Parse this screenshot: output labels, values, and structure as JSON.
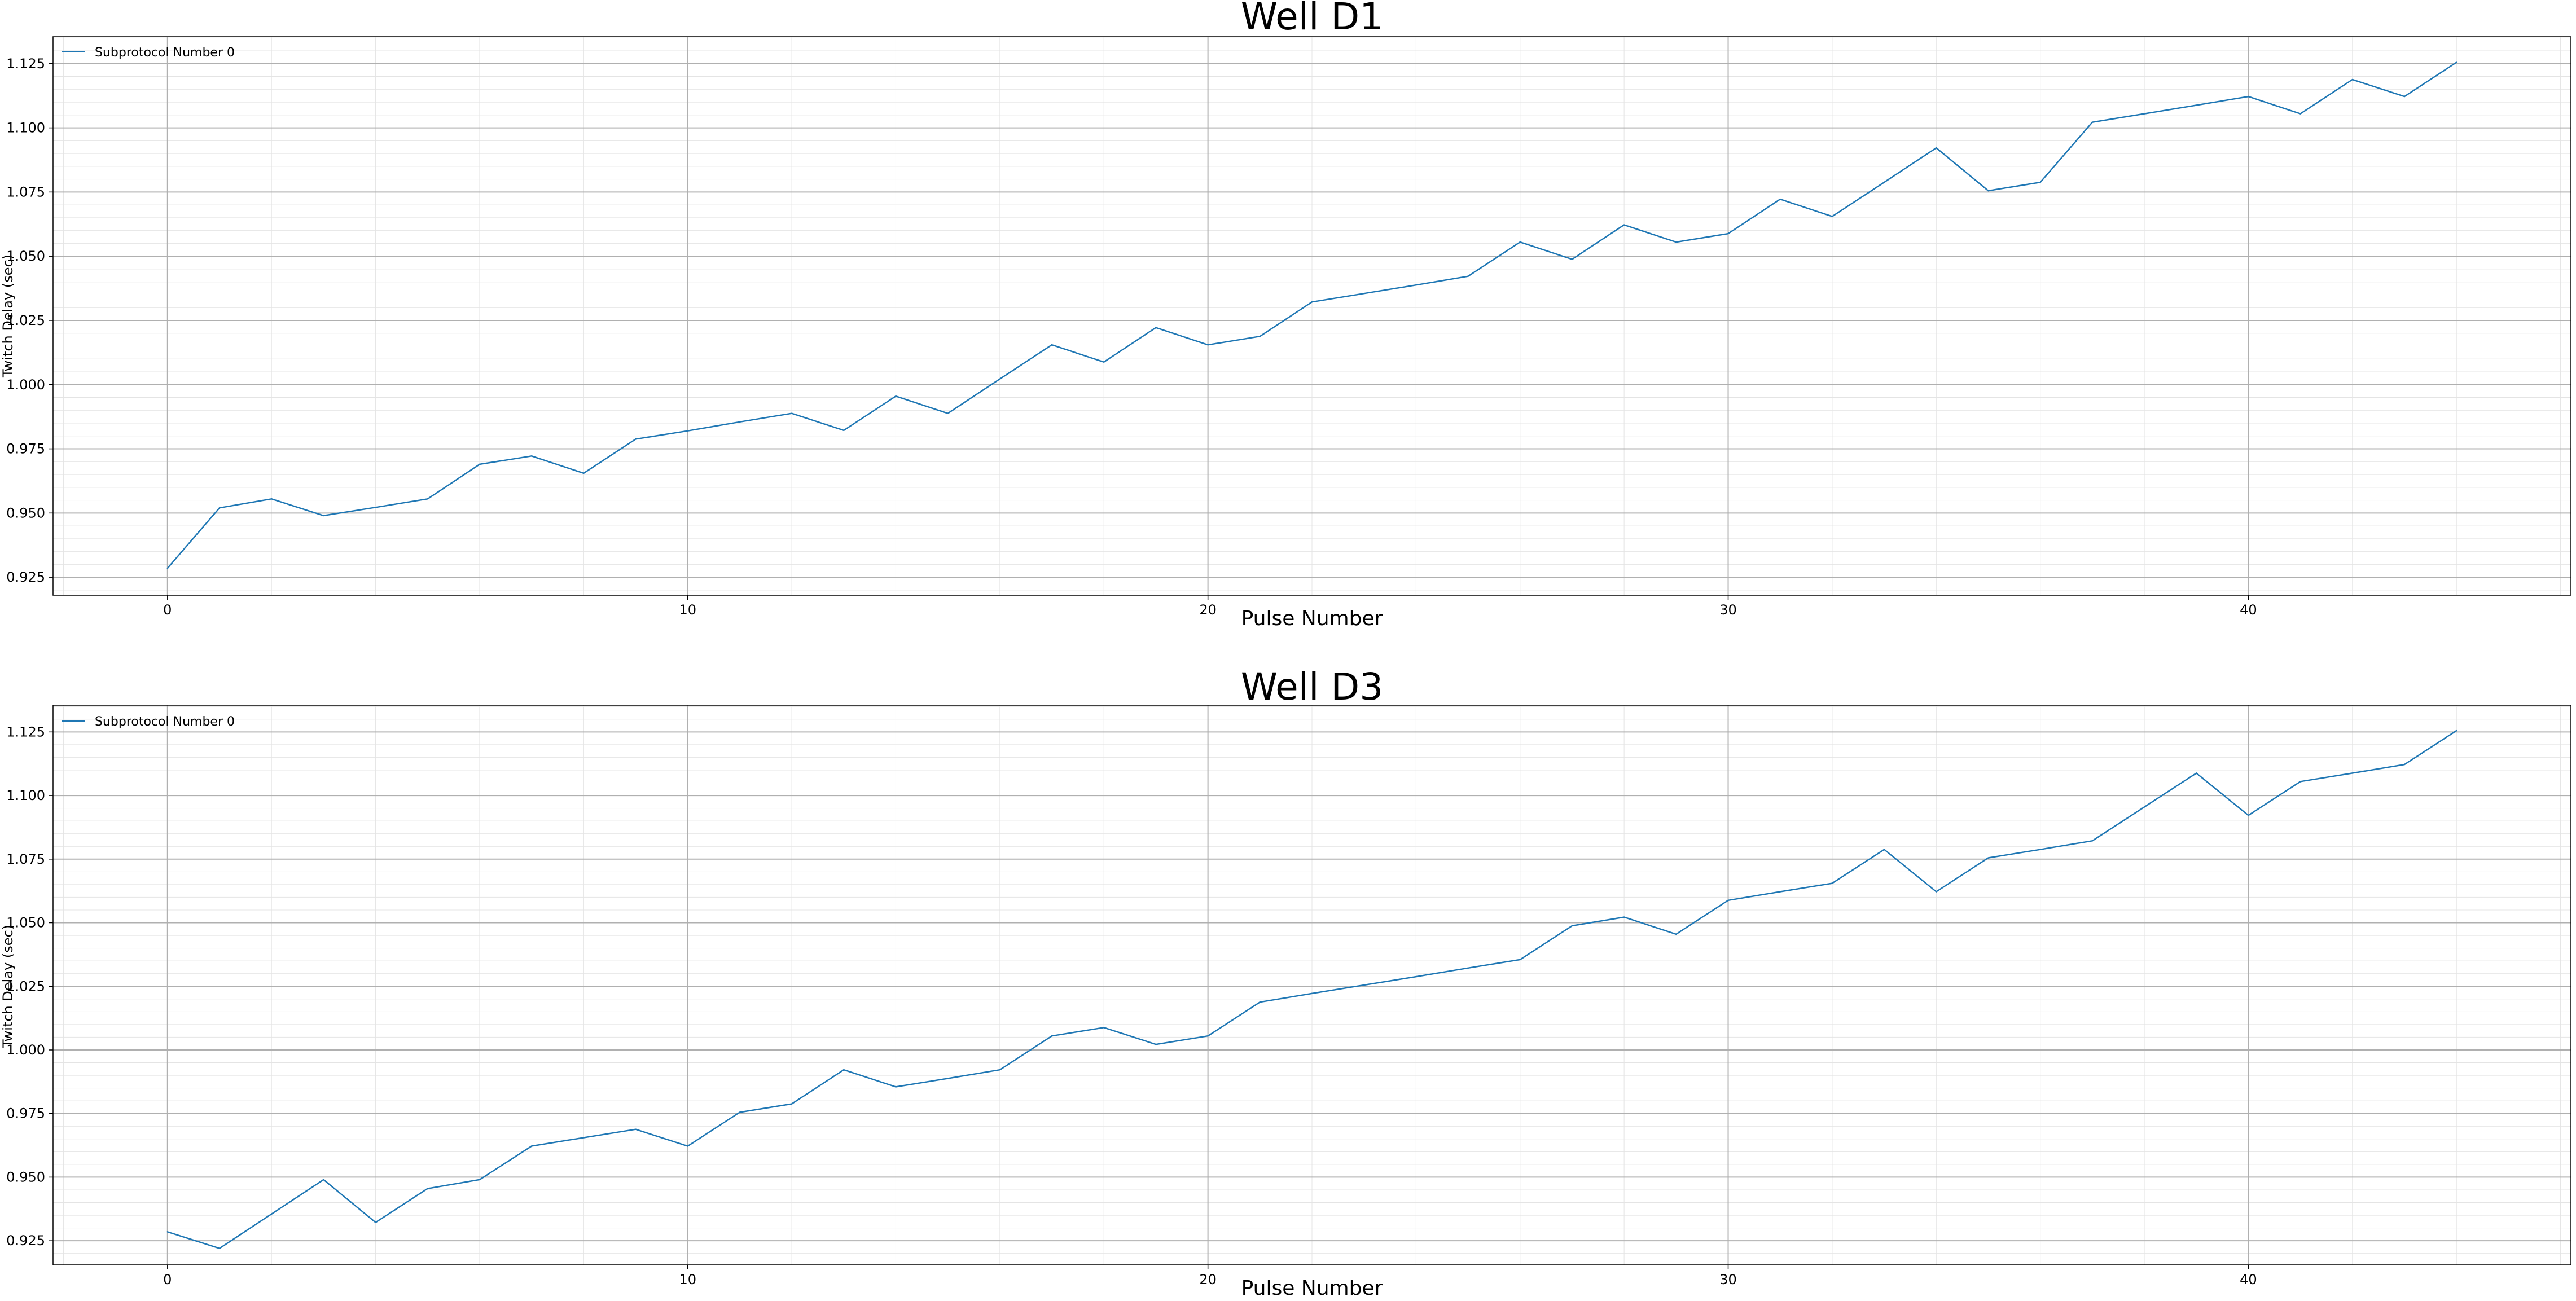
{
  "chart_data": [
    {
      "type": "line",
      "title": "Well D1",
      "xlabel": "Pulse Number",
      "ylabel": "Twitch Delay (sec)",
      "xlim": [
        -2.2,
        46.2
      ],
      "ylim": [
        0.918,
        1.1355
      ],
      "xticks": [
        0,
        10,
        20,
        30,
        40
      ],
      "xtick_labels": [
        "0",
        "10",
        "20",
        "30",
        "40"
      ],
      "yticks": [
        0.925,
        0.95,
        0.975,
        1.0,
        1.025,
        1.05,
        1.075,
        1.1,
        1.125
      ],
      "ytick_labels": [
        "0.925",
        "0.950",
        "0.975",
        "1.000",
        "1.025",
        "1.050",
        "1.075",
        "1.100",
        "1.125"
      ],
      "grid": true,
      "minor_grid": true,
      "legend_position": "upper left",
      "color": "#1f77b4",
      "series": [
        {
          "name": "Subprotocol Number 0",
          "x": [
            0,
            1,
            2,
            3,
            4,
            5,
            6,
            7,
            8,
            9,
            10,
            11,
            12,
            13,
            14,
            15,
            16,
            17,
            18,
            19,
            20,
            21,
            22,
            23,
            24,
            25,
            26,
            27,
            28,
            29,
            30,
            31,
            32,
            33,
            34,
            35,
            36,
            37,
            38,
            39,
            40,
            41,
            42,
            43,
            44
          ],
          "values": [
            0.9285,
            0.952,
            0.9555,
            0.949,
            0.9522,
            0.9555,
            0.969,
            0.9722,
            0.9655,
            0.9788,
            0.982,
            0.9855,
            0.9888,
            0.9822,
            0.9955,
            0.9888,
            1.0022,
            1.0155,
            1.0088,
            1.0222,
            1.0155,
            1.0188,
            1.0322,
            1.0355,
            1.0388,
            1.0422,
            1.0555,
            1.0488,
            1.0622,
            1.0555,
            1.0588,
            1.0722,
            1.0655,
            1.0788,
            1.0922,
            1.0755,
            1.0788,
            1.1022,
            1.1055,
            1.1088,
            1.1122,
            1.1055,
            1.1188,
            1.1122,
            1.1255
          ]
        }
      ]
    },
    {
      "type": "line",
      "title": "Well D3",
      "xlabel": "Pulse Number",
      "ylabel": "Twitch Delay (sec)",
      "xlim": [
        -2.2,
        46.2
      ],
      "ylim": [
        0.9155,
        1.1355
      ],
      "xticks": [
        0,
        10,
        20,
        30,
        40
      ],
      "xtick_labels": [
        "0",
        "10",
        "20",
        "30",
        "40"
      ],
      "yticks": [
        0.925,
        0.95,
        0.975,
        1.0,
        1.025,
        1.05,
        1.075,
        1.1,
        1.125
      ],
      "ytick_labels": [
        "0.925",
        "0.950",
        "0.975",
        "1.000",
        "1.025",
        "1.050",
        "1.075",
        "1.100",
        "1.125"
      ],
      "grid": true,
      "minor_grid": true,
      "legend_position": "upper left",
      "color": "#1f77b4",
      "series": [
        {
          "name": "Subprotocol Number 0",
          "x": [
            0,
            1,
            2,
            3,
            4,
            5,
            6,
            7,
            8,
            9,
            10,
            11,
            12,
            13,
            14,
            15,
            16,
            17,
            18,
            19,
            20,
            21,
            22,
            23,
            24,
            25,
            26,
            27,
            28,
            29,
            30,
            31,
            32,
            33,
            34,
            35,
            36,
            37,
            38,
            39,
            40,
            41,
            42,
            43,
            44
          ],
          "values": [
            0.9285,
            0.922,
            0.9355,
            0.949,
            0.9322,
            0.9455,
            0.949,
            0.9622,
            0.9655,
            0.9688,
            0.9622,
            0.9755,
            0.9788,
            0.9922,
            0.9855,
            0.9888,
            0.9922,
            1.0055,
            1.0088,
            1.0022,
            1.0055,
            1.0188,
            1.0222,
            1.0255,
            1.0288,
            1.0322,
            1.0355,
            1.0488,
            1.0522,
            1.0455,
            1.0588,
            1.0622,
            1.0655,
            1.0788,
            1.0622,
            1.0755,
            1.0788,
            1.0822,
            1.0955,
            1.1088,
            1.0922,
            1.1055,
            1.1088,
            1.1122,
            1.1255
          ]
        }
      ]
    }
  ]
}
